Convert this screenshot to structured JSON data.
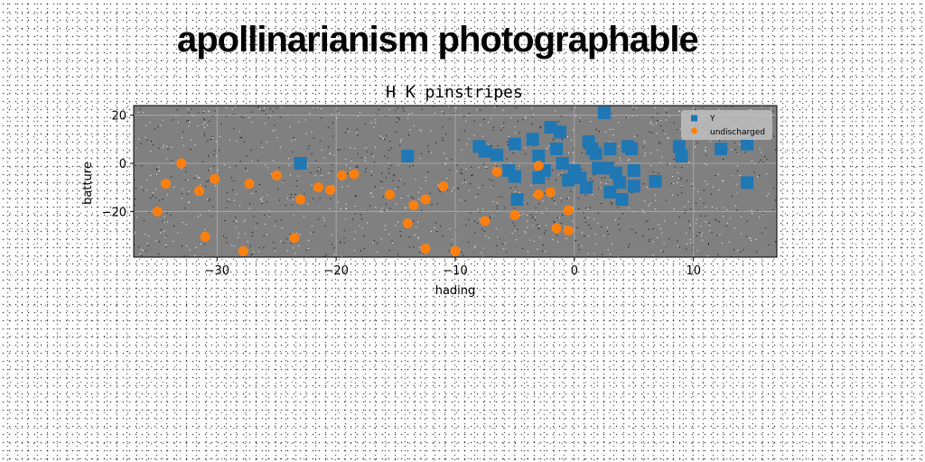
{
  "banner": "apollinarianism photographable",
  "chart_data": {
    "type": "scatter",
    "title": "H K pinstripes",
    "xlabel": "hading",
    "ylabel": "batture",
    "xlim": [
      -37,
      17
    ],
    "ylim": [
      -39,
      24
    ],
    "xticks": [
      -30,
      -20,
      -10,
      0,
      10
    ],
    "yticks": [
      -20,
      0,
      20
    ],
    "grid": true,
    "legend_position": "top-right",
    "background": "#808080",
    "series": [
      {
        "name": "Y",
        "marker": "square",
        "color": "#1f77b4",
        "points": [
          [
            -23,
            0
          ],
          [
            -14,
            3
          ],
          [
            -8,
            7
          ],
          [
            -7.5,
            5
          ],
          [
            -6.5,
            3.5
          ],
          [
            -5,
            8
          ],
          [
            -5.5,
            -3
          ],
          [
            -5,
            -5.5
          ],
          [
            -4.8,
            -15
          ],
          [
            -3.5,
            10
          ],
          [
            -3,
            3
          ],
          [
            -3,
            -6
          ],
          [
            -2.5,
            -3
          ],
          [
            -2,
            15
          ],
          [
            -1.5,
            6
          ],
          [
            -1.2,
            13
          ],
          [
            -1,
            0
          ],
          [
            -0.5,
            -7
          ],
          [
            0,
            -3
          ],
          [
            0.5,
            -6
          ],
          [
            1,
            -10
          ],
          [
            1.2,
            9
          ],
          [
            1.5,
            6
          ],
          [
            1.8,
            4
          ],
          [
            2,
            -2
          ],
          [
            2.5,
            21
          ],
          [
            2.8,
            -2
          ],
          [
            3,
            -12
          ],
          [
            3,
            6
          ],
          [
            3.5,
            -4
          ],
          [
            3.8,
            -8
          ],
          [
            4,
            -15
          ],
          [
            4.5,
            7
          ],
          [
            4.8,
            6
          ],
          [
            5,
            -9.5
          ],
          [
            5,
            -3
          ],
          [
            6.8,
            -7.5
          ],
          [
            8.8,
            7
          ],
          [
            9,
            3
          ],
          [
            12.3,
            6
          ],
          [
            14.5,
            8
          ],
          [
            14.5,
            -8
          ]
        ]
      },
      {
        "name": "undischarged",
        "marker": "circle",
        "color": "#ff7f0e",
        "points": [
          [
            -35,
            -20
          ],
          [
            -34.3,
            -8.5
          ],
          [
            -33,
            0
          ],
          [
            -31.5,
            -11.5
          ],
          [
            -31,
            -30.5
          ],
          [
            -30.2,
            -6.5
          ],
          [
            -27.8,
            -36.5
          ],
          [
            -27.3,
            -8.5
          ],
          [
            -25,
            -5
          ],
          [
            -23.5,
            -31
          ],
          [
            -23,
            -15
          ],
          [
            -21.5,
            -10
          ],
          [
            -20.5,
            -11
          ],
          [
            -19.5,
            -5
          ],
          [
            -18.5,
            -4.5
          ],
          [
            -15.5,
            -13
          ],
          [
            -14,
            -25
          ],
          [
            -13.5,
            -17.5
          ],
          [
            -12.5,
            -15
          ],
          [
            -12.5,
            -35.5
          ],
          [
            -11,
            -9.5
          ],
          [
            -10,
            -36.5
          ],
          [
            -7.5,
            -24
          ],
          [
            -6.5,
            -3.5
          ],
          [
            -5,
            -21.5
          ],
          [
            -3,
            -1
          ],
          [
            -3,
            -13
          ],
          [
            -2,
            -12
          ],
          [
            -1.5,
            -27
          ],
          [
            -0.5,
            -19.5
          ],
          [
            -0.5,
            -28
          ]
        ]
      }
    ]
  }
}
